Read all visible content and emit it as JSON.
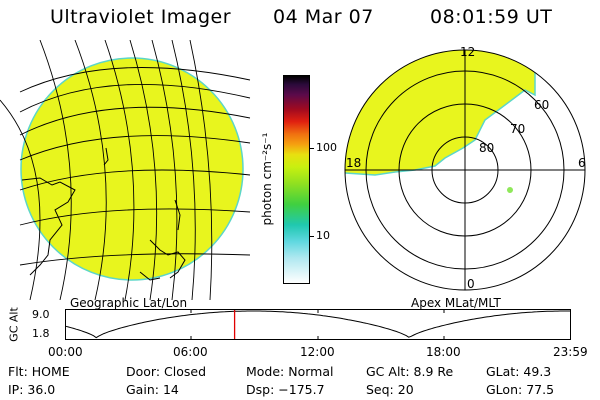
{
  "header": {
    "title": "Ultraviolet Imager",
    "date": "04 Mar 07",
    "time": "08:01:59 UT"
  },
  "left_panel": {
    "caption": "Geographic Lat/Lon"
  },
  "right_panel": {
    "caption": "Apex MLat/MLT",
    "mlt_labels": {
      "top": "12",
      "right": "6",
      "bottom": "0",
      "left": "18"
    },
    "lat_labels": [
      "60",
      "70",
      "80"
    ]
  },
  "colorbar": {
    "unit": "photon cm⁻²s⁻¹",
    "tick_labels": [
      "100",
      "10"
    ]
  },
  "altitude_plot": {
    "ylabel": "GC Alt",
    "ytick_labels": [
      "9.0",
      "1.8"
    ],
    "xtick_labels": [
      "00:00",
      "06:00",
      "12:00",
      "18:00",
      "23:59"
    ],
    "marker_hour": 8.03
  },
  "info": {
    "row1": [
      {
        "label": "Flt:",
        "value": "HOME"
      },
      {
        "label": "Door:",
        "value": "Closed"
      },
      {
        "label": "Mode:",
        "value": "Normal"
      },
      {
        "label": "GC Alt:",
        "value": "8.9 Re"
      },
      {
        "label": "GLat:",
        "value": "49.3"
      }
    ],
    "row2": [
      {
        "label": "IP:",
        "value": "36.0"
      },
      {
        "label": "Gain:",
        "value": "14"
      },
      {
        "label": "Dsp:",
        "value": "−175.7"
      },
      {
        "label": "Seq:",
        "value": "20"
      },
      {
        "label": "GLon:",
        "value": "77.5"
      }
    ]
  },
  "colors": {
    "emission": "#e8f51e",
    "edge": "#5cd6c8",
    "grid": "#000000",
    "marker": "#e00000"
  }
}
